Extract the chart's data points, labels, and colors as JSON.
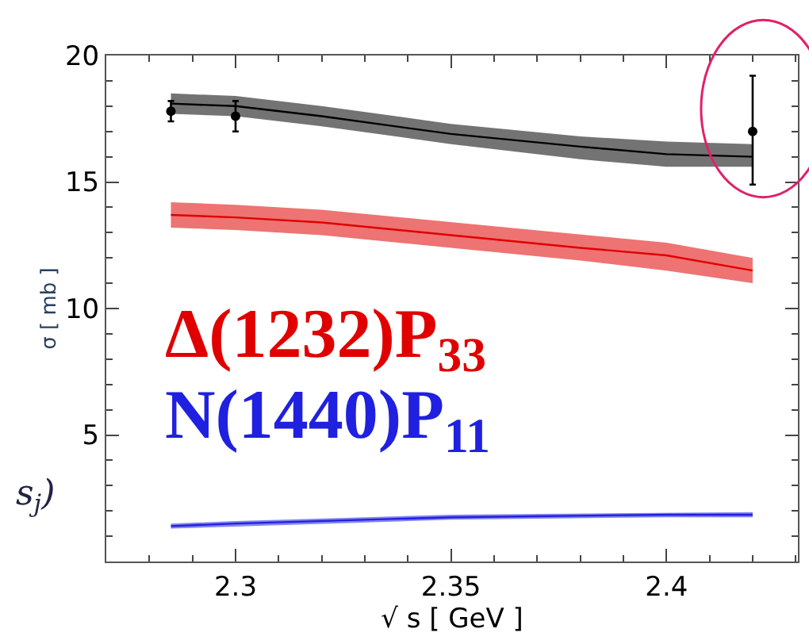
{
  "chart_data": {
    "type": "line",
    "xlabel": "√ s [ GeV ]",
    "ylabel": "σ [ mb ]",
    "xlim": [
      2.27,
      2.4305
    ],
    "ylim": [
      0,
      20
    ],
    "xticks": [
      2.3,
      2.35,
      2.4
    ],
    "yticks": [
      5,
      10,
      15,
      20
    ],
    "grid": false,
    "marker": "none",
    "line_style": "solid",
    "annotations": [
      "s$_{j}$)"
    ],
    "series": [
      {
        "color": "#000000",
        "x": [
          2.285,
          2.3,
          2.32,
          2.35,
          2.38,
          2.4,
          2.42
        ],
        "values": [
          18.1,
          18.0,
          17.6,
          16.9,
          16.4,
          16.1,
          16.0
        ],
        "lower": [
          17.7,
          17.6,
          17.2,
          16.5,
          15.9,
          15.6,
          15.6
        ],
        "upper": [
          18.5,
          18.4,
          18.0,
          17.3,
          16.8,
          16.6,
          16.5
        ]
      },
      {
        "name": "Δ(1232)P$_{33}$",
        "color": "#e00000",
        "x": [
          2.285,
          2.3,
          2.32,
          2.35,
          2.38,
          2.4,
          2.42
        ],
        "values": [
          13.7,
          13.6,
          13.4,
          12.9,
          12.4,
          12.1,
          11.5
        ],
        "lower": [
          13.2,
          13.1,
          12.9,
          12.4,
          11.9,
          11.5,
          11.0
        ],
        "upper": [
          14.2,
          14.1,
          13.9,
          13.4,
          12.9,
          12.6,
          12.0
        ]
      },
      {
        "name": "N(1440)P$_{11}$",
        "color": "#2020e0",
        "x": [
          2.285,
          2.3,
          2.35,
          2.4,
          2.42
        ],
        "values": [
          1.4,
          1.5,
          1.75,
          1.85,
          1.85
        ],
        "lower": [
          1.3,
          1.4,
          1.65,
          1.75,
          1.75
        ],
        "upper": [
          1.5,
          1.6,
          1.85,
          1.95,
          1.95
        ]
      },
      {
        "type": "scatter",
        "color": "#000000",
        "marker": "circle",
        "x": [
          2.285,
          2.3,
          2.42
        ],
        "values": [
          17.8,
          17.6,
          17.0
        ],
        "errors": [
          0.4,
          0.6,
          [
            14.9,
            19.2
          ]
        ]
      }
    ]
  }
}
